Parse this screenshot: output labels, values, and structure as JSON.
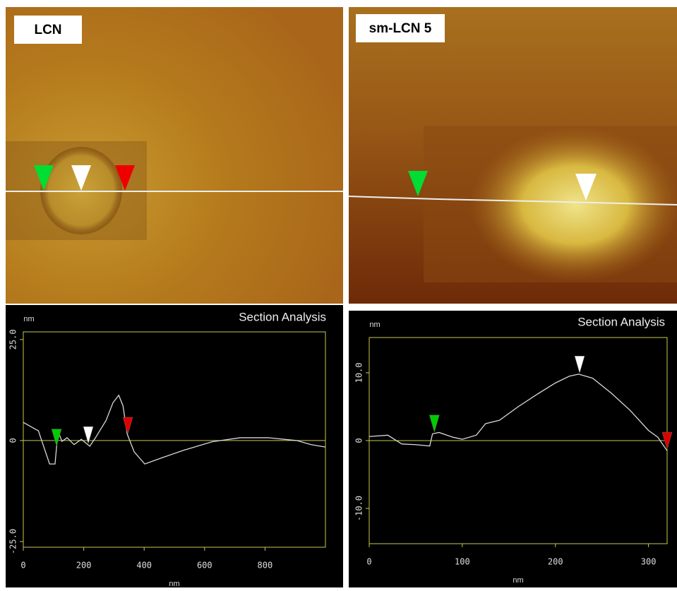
{
  "chart_data": [
    {
      "type": "line",
      "panel_label": "LCN",
      "title": "Section Analysis",
      "y_label": "nm",
      "x_label": "nm",
      "xlim": [
        0,
        1000
      ],
      "ylim": [
        -26.4,
        26.9
      ],
      "xticks": [
        0,
        200,
        400,
        600,
        800
      ],
      "yticks": [
        {
          "value": -25,
          "label": "-25.0"
        },
        0,
        {
          "value": 25,
          "label": "25.0"
        }
      ],
      "x": [
        0,
        50,
        87,
        105,
        115,
        128,
        145,
        168,
        192,
        220,
        239,
        274,
        297,
        316,
        330,
        344,
        367,
        402,
        461,
        531,
        625,
        718,
        812,
        905,
        952,
        1000
      ],
      "values": [
        4.5,
        2.4,
        -5.8,
        -5.8,
        2.4,
        -0.2,
        0.7,
        -1,
        0.3,
        -1.4,
        0.7,
        5,
        9.4,
        11.2,
        8.6,
        1.6,
        -2.8,
        -5.8,
        -4.2,
        -2.4,
        -0.3,
        0.7,
        0.7,
        0,
        -1,
        -1.6
      ],
      "color": "#d8d8d8",
      "cursors": {
        "x": [
          110,
          215,
          346
        ],
        "colors": [
          "#00cc00",
          "#ffffff",
          "#e00000"
        ]
      }
    },
    {
      "type": "line",
      "panel_label": "sm-LCN 5",
      "title": "Section Analysis",
      "y_label": "nm",
      "x_label": "nm",
      "xlim": [
        0,
        320
      ],
      "ylim": [
        -15.2,
        15.2
      ],
      "xticks": [
        0,
        100,
        200,
        300
      ],
      "yticks": [
        {
          "value": -10,
          "label": "-10.0"
        },
        0,
        {
          "value": 10,
          "label": "10.0"
        }
      ],
      "x": [
        0,
        20,
        35,
        50,
        65,
        68,
        75,
        90,
        100,
        115,
        125,
        140,
        160,
        180,
        200,
        215,
        225,
        240,
        260,
        280,
        300,
        310,
        320
      ],
      "values": [
        0.6,
        0.8,
        -0.5,
        -0.6,
        -0.8,
        1,
        1.2,
        0.5,
        0.2,
        0.8,
        2.5,
        3,
        5,
        6.8,
        8.5,
        9.5,
        9.8,
        9.2,
        7,
        4.5,
        1.5,
        0.5,
        -1.5
      ],
      "color": "#d8d8d8",
      "cursors": {
        "x": [
          70,
          226,
          320
        ],
        "colors": [
          "#00cc00",
          "#ffffff",
          "#e00000"
        ]
      }
    }
  ]
}
